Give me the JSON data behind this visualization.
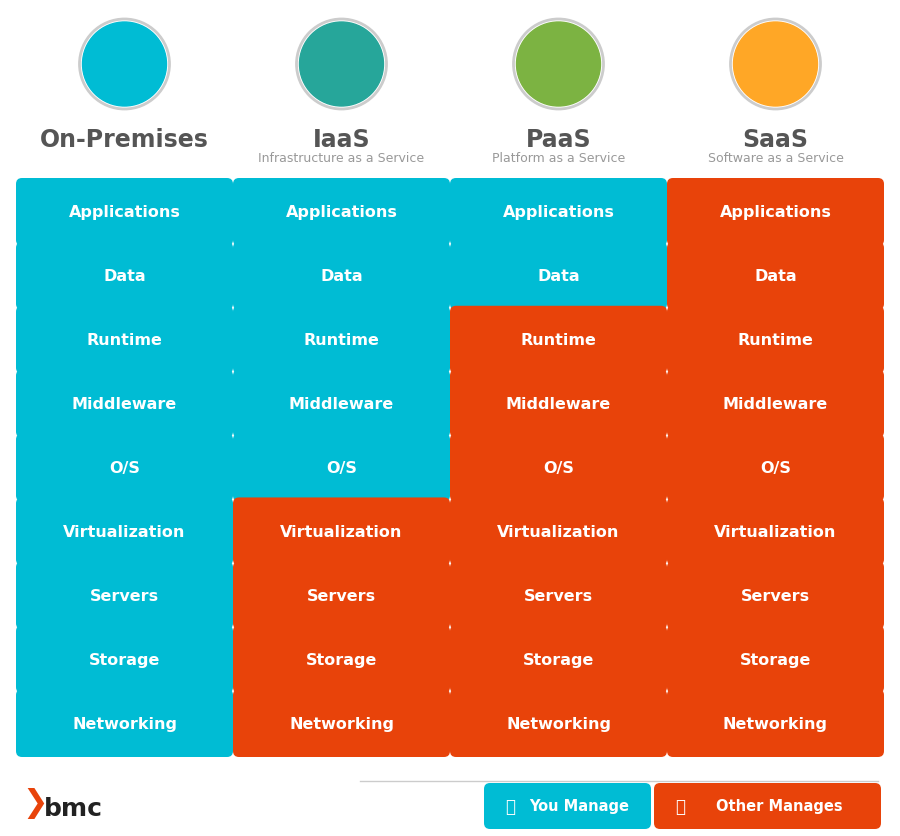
{
  "columns": [
    "On-Premises",
    "IaaS",
    "PaaS",
    "SaaS"
  ],
  "subtitles": [
    "",
    "Infrastructure as a Service",
    "Platform as a Service",
    "Software as a Service"
  ],
  "rows": [
    "Applications",
    "Data",
    "Runtime",
    "Middleware",
    "O/S",
    "Virtualization",
    "Servers",
    "Storage",
    "Networking"
  ],
  "cyan_color": "#00BCD4",
  "orange_color": "#E8430A",
  "text_color": "#FFFFFF",
  "title_color": "#555555",
  "subtitle_color": "#999999",
  "bg_color": "#FFFFFF",
  "cell_colors": [
    [
      "cyan",
      "cyan",
      "cyan",
      "orange"
    ],
    [
      "cyan",
      "cyan",
      "cyan",
      "orange"
    ],
    [
      "cyan",
      "cyan",
      "orange",
      "orange"
    ],
    [
      "cyan",
      "cyan",
      "orange",
      "orange"
    ],
    [
      "cyan",
      "cyan",
      "orange",
      "orange"
    ],
    [
      "cyan",
      "orange",
      "orange",
      "orange"
    ],
    [
      "cyan",
      "orange",
      "orange",
      "orange"
    ],
    [
      "cyan",
      "orange",
      "orange",
      "orange"
    ],
    [
      "cyan",
      "orange",
      "orange",
      "orange"
    ]
  ],
  "icon_colors": [
    "#00BCD4",
    "#26A69A",
    "#7CB342",
    "#FFA726"
  ],
  "icon_border_color": "#CCCCCC",
  "legend_you_manage": "You Manage",
  "legend_other_manages": "Other Manages",
  "bmc_color": "#E8430A",
  "bmc_text": "bmc",
  "figsize": [
    9.0,
    8.37
  ],
  "dpi": 100
}
